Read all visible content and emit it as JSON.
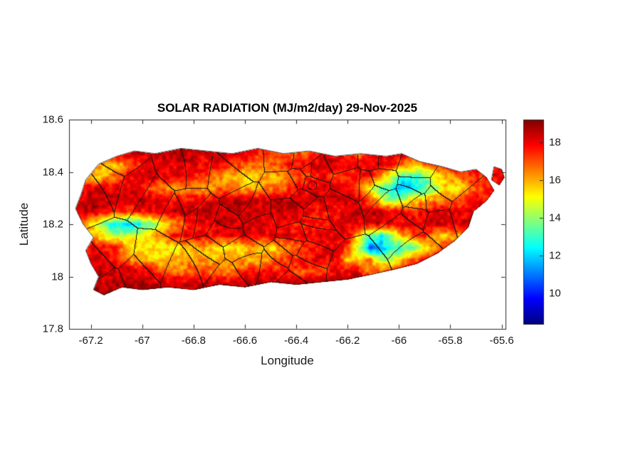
{
  "chart_data": {
    "type": "heatmap",
    "title": "SOLAR RADIATION (MJ/m2/day) 29-Nov-2025",
    "xlabel": "Longitude",
    "ylabel": "Latitude",
    "xlim": [
      -67.285,
      -65.585
    ],
    "ylim": [
      17.8,
      18.6
    ],
    "xticks": [
      -67.2,
      -67,
      -66.8,
      -66.6,
      -66.4,
      -66.2,
      -66,
      -65.8,
      -65.6
    ],
    "xtick_labels": [
      "-67.2",
      "-67",
      "-66.8",
      "-66.6",
      "-66.4",
      "-66.2",
      "-66",
      "-65.8",
      "-65.6"
    ],
    "yticks": [
      17.8,
      18,
      18.2,
      18.4,
      18.6
    ],
    "ytick_labels": [
      "17.8",
      "18",
      "18.2",
      "18.4",
      "18.6"
    ],
    "colormap": "jet",
    "clim": [
      8.4,
      19.2
    ],
    "colorbar_ticks": [
      10,
      12,
      14,
      16,
      18
    ],
    "colorbar_tick_labels": [
      "10",
      "12",
      "14",
      "16",
      "18"
    ],
    "axis_color": "#262626",
    "border_color": "#1e1e1e",
    "grid": {
      "lon_min": -67.27,
      "lon_max": -65.6,
      "lat_min": 17.93,
      "lat_max": 18.52,
      "ncols": 40,
      "nrows": 14,
      "values_rows_north_to_south": [
        [
          18.6,
          18.6,
          18.5,
          18.6,
          18.7,
          18.6,
          18.5,
          18.6,
          18.6,
          18.7,
          18.6,
          18.5,
          18.6,
          18.6,
          18.5,
          18.6,
          18.7,
          18.6,
          18.5,
          18.4,
          18.5,
          18.6,
          18.6,
          18.5,
          18.6,
          18.6,
          18.5,
          18.6,
          18.6,
          18.5,
          18.6,
          18.6,
          18.6,
          18.5,
          18.6,
          18.6,
          18.5,
          18.6,
          18.6,
          18.6
        ],
        [
          18.5,
          18.5,
          18.4,
          18.5,
          18.6,
          18.5,
          18.4,
          18.5,
          18.5,
          18.4,
          18.5,
          18.5,
          18.3,
          18.4,
          18.5,
          18.2,
          18.0,
          17.5,
          16.8,
          16.9,
          17.2,
          16.8,
          17.5,
          18.0,
          18.2,
          17.8,
          16.5,
          17.5,
          18.2,
          18.4,
          18.5,
          18.4,
          18.3,
          18.4,
          18.5,
          18.4,
          18.3,
          18.4,
          18.5,
          18.5
        ],
        [
          18.2,
          17.5,
          16.2,
          15.8,
          16.0,
          16.8,
          17.6,
          18.1,
          18.3,
          18.2,
          18.3,
          18.2,
          18.0,
          17.8,
          17.5,
          17.2,
          17.0,
          16.8,
          17.0,
          17.3,
          17.6,
          18.0,
          18.2,
          18.3,
          18.2,
          18.0,
          17.8,
          18.0,
          18.2,
          17.5,
          16.5,
          16.0,
          16.5,
          17.5,
          17.8,
          17.9,
          18.0,
          18.1,
          18.2,
          18.2
        ],
        [
          17.0,
          15.8,
          15.5,
          16.0,
          17.0,
          17.8,
          18.0,
          18.2,
          18.1,
          18.0,
          17.8,
          17.5,
          17.2,
          16.5,
          16.0,
          15.8,
          15.5,
          15.8,
          16.0,
          16.3,
          16.8,
          17.2,
          17.6,
          17.9,
          17.2,
          17.5,
          17.8,
          18.0,
          16.5,
          14.5,
          13.0,
          13.0,
          13.5,
          15.0,
          16.0,
          16.8,
          17.2,
          17.5,
          17.8,
          17.9
        ],
        [
          17.8,
          18.0,
          18.2,
          18.3,
          18.2,
          18.0,
          17.8,
          17.2,
          16.6,
          16.4,
          16.5,
          16.5,
          16.3,
          16.5,
          16.8,
          16.2,
          16.0,
          16.2,
          16.5,
          17.0,
          17.4,
          17.8,
          18.0,
          18.2,
          18.0,
          17.5,
          16.5,
          15.0,
          13.5,
          12.5,
          11.5,
          12.0,
          13.0,
          14.5,
          15.5,
          15.0,
          16.5,
          17.0,
          17.5,
          17.8
        ],
        [
          18.3,
          18.4,
          18.5,
          18.4,
          18.3,
          18.4,
          18.5,
          18.4,
          18.2,
          18.0,
          17.5,
          17.8,
          18.0,
          18.2,
          18.4,
          18.5,
          18.4,
          18.3,
          18.4,
          18.5,
          18.4,
          18.5,
          18.5,
          18.4,
          18.3,
          18.2,
          18.0,
          17.0,
          15.0,
          14.0,
          14.5,
          15.5,
          16.0,
          16.5,
          16.5,
          16.8,
          17.5,
          17.8,
          18.0,
          18.0
        ],
        [
          18.4,
          18.5,
          18.5,
          17.8,
          17.0,
          17.2,
          17.5,
          18.0,
          18.3,
          18.5,
          18.5,
          18.4,
          18.5,
          18.5,
          18.4,
          18.5,
          18.5,
          18.4,
          18.3,
          18.4,
          18.5,
          18.2,
          17.6,
          17.5,
          17.8,
          18.2,
          18.4,
          18.5,
          18.4,
          18.2,
          18.0,
          17.8,
          18.0,
          18.2,
          18.3,
          18.2,
          18.0,
          18.2,
          18.3,
          18.3
        ],
        [
          17.5,
          16.5,
          15.0,
          13.0,
          12.2,
          12.0,
          12.5,
          13.5,
          15.0,
          16.0,
          17.0,
          17.8,
          18.2,
          18.3,
          18.2,
          18.1,
          18.2,
          18.3,
          18.2,
          18.0,
          17.5,
          17.4,
          17.6,
          18.0,
          18.2,
          18.3,
          18.2,
          18.1,
          18.2,
          18.3,
          18.2,
          18.1,
          18.2,
          18.3,
          18.2,
          18.1,
          18.2,
          18.3,
          18.3,
          18.3
        ],
        [
          17.0,
          16.2,
          16.0,
          15.0,
          14.5,
          14.5,
          15.0,
          15.5,
          16.5,
          17.5,
          18.0,
          18.1,
          18.0,
          17.9,
          18.0,
          18.1,
          18.0,
          17.9,
          18.0,
          18.1,
          18.0,
          17.9,
          18.0,
          18.1,
          18.0,
          17.8,
          15.5,
          13.5,
          12.5,
          14.0,
          16.0,
          17.0,
          17.5,
          16.0,
          15.5,
          16.0,
          17.0,
          17.8,
          18.0,
          18.1
        ],
        [
          17.8,
          17.9,
          18.0,
          17.8,
          17.5,
          16.0,
          15.5,
          15.2,
          15.0,
          15.3,
          15.5,
          15.8,
          16.0,
          15.5,
          15.2,
          15.5,
          16.0,
          15.8,
          15.5,
          16.0,
          16.5,
          17.2,
          17.8,
          18.0,
          17.8,
          17.5,
          14.0,
          10.5,
          11.5,
          13.0,
          13.0,
          13.5,
          15.0,
          16.5,
          17.5,
          17.6,
          17.5,
          17.8,
          18.0,
          18.0
        ],
        [
          18.0,
          18.1,
          18.2,
          18.1,
          18.0,
          16.5,
          16.2,
          16.0,
          15.8,
          16.0,
          16.2,
          16.5,
          16.3,
          16.0,
          16.2,
          16.0,
          15.8,
          16.0,
          16.5,
          17.0,
          17.5,
          17.8,
          18.0,
          18.1,
          18.0,
          15.5,
          15.5,
          16.5,
          14.0,
          14.5,
          16.0,
          17.0,
          17.8,
          18.0,
          18.2,
          18.3,
          18.2,
          18.3,
          18.4,
          18.4
        ],
        [
          18.3,
          18.4,
          18.5,
          18.4,
          18.3,
          18.4,
          18.2,
          18.0,
          16.8,
          16.5,
          16.6,
          16.8,
          17.0,
          16.8,
          16.5,
          17.0,
          17.5,
          17.8,
          18.0,
          17.5,
          17.0,
          17.2,
          17.0,
          17.5,
          18.0,
          18.2,
          18.0,
          16.5,
          17.0,
          17.8,
          18.2,
          18.4,
          18.5,
          18.4,
          18.5,
          18.5,
          18.4,
          18.5,
          18.5,
          18.5
        ],
        [
          18.6,
          18.7,
          18.6,
          18.5,
          18.6,
          18.7,
          18.6,
          18.5,
          18.4,
          18.3,
          18.4,
          18.5,
          18.6,
          18.5,
          18.4,
          18.5,
          18.6,
          18.5,
          18.4,
          18.5,
          18.6,
          18.5,
          18.6,
          18.7,
          18.6,
          18.5,
          18.6,
          18.7,
          18.6,
          18.5,
          18.6,
          18.5,
          18.6,
          18.7,
          18.6,
          18.5,
          18.6,
          18.6,
          18.6,
          18.6
        ],
        [
          18.8,
          18.8,
          18.7,
          18.8,
          18.8,
          18.7,
          18.8,
          18.8,
          18.7,
          18.8,
          18.8,
          18.7,
          18.8,
          18.8,
          18.7,
          18.8,
          18.8,
          18.7,
          18.8,
          18.8,
          18.7,
          18.8,
          18.8,
          18.7,
          18.8,
          18.8,
          18.7,
          18.8,
          18.8,
          18.7,
          18.8,
          18.8,
          18.7,
          18.8,
          18.8,
          18.7,
          18.8,
          18.8,
          18.8,
          18.8
        ]
      ]
    },
    "island_outline": [
      [
        -67.22,
        18.37
      ],
      [
        -67.17,
        18.43
      ],
      [
        -67.1,
        18.46
      ],
      [
        -67.03,
        18.48
      ],
      [
        -66.95,
        18.47
      ],
      [
        -66.85,
        18.49
      ],
      [
        -66.75,
        18.48
      ],
      [
        -66.65,
        18.47
      ],
      [
        -66.55,
        18.49
      ],
      [
        -66.45,
        18.47
      ],
      [
        -66.35,
        18.48
      ],
      [
        -66.25,
        18.46
      ],
      [
        -66.15,
        18.47
      ],
      [
        -66.05,
        18.46
      ],
      [
        -65.99,
        18.47
      ],
      [
        -65.92,
        18.44
      ],
      [
        -65.83,
        18.42
      ],
      [
        -65.76,
        18.4
      ],
      [
        -65.7,
        18.41
      ],
      [
        -65.66,
        18.38
      ],
      [
        -65.63,
        18.33
      ],
      [
        -65.66,
        18.29
      ],
      [
        -65.71,
        18.25
      ],
      [
        -65.73,
        18.19
      ],
      [
        -65.78,
        18.14
      ],
      [
        -65.85,
        18.09
      ],
      [
        -65.93,
        18.05
      ],
      [
        -66.01,
        18.03
      ],
      [
        -66.1,
        18.01
      ],
      [
        -66.2,
        17.99
      ],
      [
        -66.3,
        17.98
      ],
      [
        -66.4,
        17.97
      ],
      [
        -66.5,
        17.98
      ],
      [
        -66.6,
        17.96
      ],
      [
        -66.7,
        17.97
      ],
      [
        -66.8,
        17.95
      ],
      [
        -66.9,
        17.96
      ],
      [
        -67.0,
        17.95
      ],
      [
        -67.08,
        17.96
      ],
      [
        -67.15,
        17.93
      ],
      [
        -67.19,
        17.95
      ],
      [
        -67.17,
        18.0
      ],
      [
        -67.2,
        18.05
      ],
      [
        -67.22,
        18.1
      ],
      [
        -67.19,
        18.15
      ],
      [
        -67.23,
        18.2
      ],
      [
        -67.26,
        18.26
      ],
      [
        -67.24,
        18.31
      ]
    ],
    "island_outline_northeast": [
      [
        -65.63,
        18.42
      ],
      [
        -65.6,
        18.41
      ],
      [
        -65.59,
        18.38
      ],
      [
        -65.61,
        18.35
      ],
      [
        -65.64,
        18.37
      ]
    ],
    "region_borders": {
      "count": 70,
      "seed": 7
    }
  }
}
